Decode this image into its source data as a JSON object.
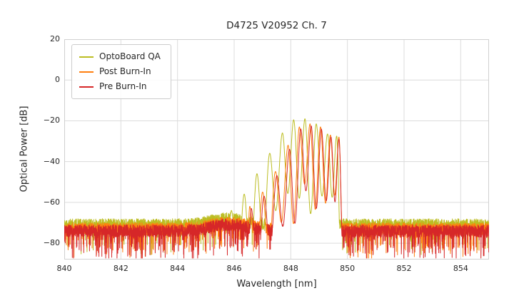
{
  "chart_data": {
    "type": "line",
    "title": "D4725 V20952 Ch. 7",
    "xlabel": "Wavelength [nm]",
    "ylabel": "Optical Power [dB]",
    "xlim": [
      840,
      855
    ],
    "ylim": [
      -88,
      20
    ],
    "grid": true,
    "legend_position": "upper left",
    "x_ticks": [
      {
        "label": "840",
        "value": 840
      },
      {
        "label": "842",
        "value": 842
      },
      {
        "label": "844",
        "value": 844
      },
      {
        "label": "846",
        "value": 846
      },
      {
        "label": "848",
        "value": 848
      },
      {
        "label": "850",
        "value": 850
      },
      {
        "label": "852",
        "value": 852
      },
      {
        "label": "854",
        "value": 854
      }
    ],
    "y_ticks": [
      {
        "label": "20",
        "value": 20
      },
      {
        "label": "0",
        "value": 0
      },
      {
        "label": "−20",
        "value": -20
      },
      {
        "label": "−40",
        "value": -40
      },
      {
        "label": "−60",
        "value": -60
      },
      {
        "label": "−80",
        "value": -80
      }
    ],
    "grid_color": "#dcdcdc",
    "series": [
      {
        "name": "OptoBoard QA",
        "color": "#bcbd22",
        "noise_floor_db": -71,
        "noise_spread_db": 6,
        "spike_prob": 0.05,
        "null_depth_db": 38,
        "seed": 11,
        "mode_peaks": [
          [
            845.45,
            -69
          ],
          [
            845.9,
            -64
          ],
          [
            846.35,
            -56
          ],
          [
            846.8,
            -46
          ],
          [
            847.25,
            -36
          ],
          [
            847.7,
            -26
          ],
          [
            848.1,
            -19.5
          ],
          [
            848.5,
            -19
          ],
          [
            848.9,
            -21.5
          ],
          [
            849.3,
            -26.5
          ],
          [
            849.62,
            -27.5
          ]
        ]
      },
      {
        "name": "Post Burn-In",
        "color": "#ff7f0e",
        "noise_floor_db": -73,
        "noise_spread_db": 6,
        "spike_prob": 0.1,
        "null_depth_db": 36,
        "seed": 22,
        "mode_peaks": [
          [
            846.55,
            -62
          ],
          [
            847.0,
            -55
          ],
          [
            847.45,
            -45
          ],
          [
            847.9,
            -32
          ],
          [
            848.3,
            -23
          ],
          [
            848.68,
            -21.5
          ],
          [
            849.05,
            -23
          ],
          [
            849.4,
            -27
          ],
          [
            849.7,
            -28
          ]
        ]
      },
      {
        "name": "Pre Burn-In",
        "color": "#d62728",
        "noise_floor_db": -74,
        "noise_spread_db": 6,
        "spike_prob": 0.12,
        "null_depth_db": 36,
        "seed": 33,
        "mode_peaks": [
          [
            846.6,
            -63
          ],
          [
            847.05,
            -57
          ],
          [
            847.5,
            -47
          ],
          [
            847.95,
            -34
          ],
          [
            848.35,
            -24
          ],
          [
            848.72,
            -22.5
          ],
          [
            849.08,
            -24
          ],
          [
            849.42,
            -28
          ],
          [
            849.7,
            -29
          ]
        ]
      }
    ]
  }
}
